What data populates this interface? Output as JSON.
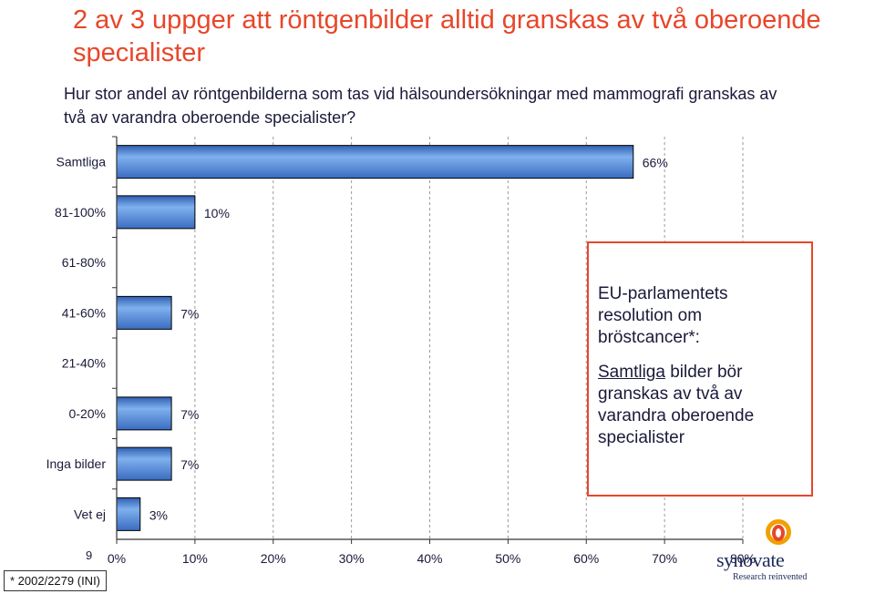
{
  "title": "2 av 3 uppger att röntgenbilder alltid granskas av två oberoende specialister",
  "subtitle": "Hur stor andel av röntgenbilderna som tas vid hälsoundersökningar med mammografi granskas av två av varandra oberoende specialister?",
  "chart_data": {
    "type": "bar",
    "orientation": "horizontal",
    "categories": [
      "Samtliga",
      "81-100%",
      "61-80%",
      "41-60%",
      "21-40%",
      "0-20%",
      "Inga bilder",
      "Vet ej"
    ],
    "values": [
      66,
      10,
      null,
      7,
      null,
      7,
      7,
      3
    ],
    "value_labels": [
      "66%",
      "10%",
      "",
      "7%",
      "",
      "7%",
      "7%",
      "3%"
    ],
    "xlim": [
      0,
      80
    ],
    "x_ticks": [
      0,
      10,
      20,
      30,
      40,
      50,
      60,
      70,
      80
    ],
    "x_tick_labels": [
      "0%",
      "10%",
      "20%",
      "30%",
      "40%",
      "50%",
      "60%",
      "70%",
      "80%"
    ],
    "grid": "vertical dashed",
    "bar_color": "#5b8fd6"
  },
  "callout": {
    "heading": "EU-parlamentets resolution om bröstcancer*:",
    "body_underlined": "Samtliga",
    "body_rest": " bilder bör granskas av två av varandra oberoende specialister"
  },
  "page_number": "9",
  "footnote": "* 2002/2279 (INI)",
  "logo": {
    "name": "synovate",
    "tagline": "Research reinvented"
  }
}
